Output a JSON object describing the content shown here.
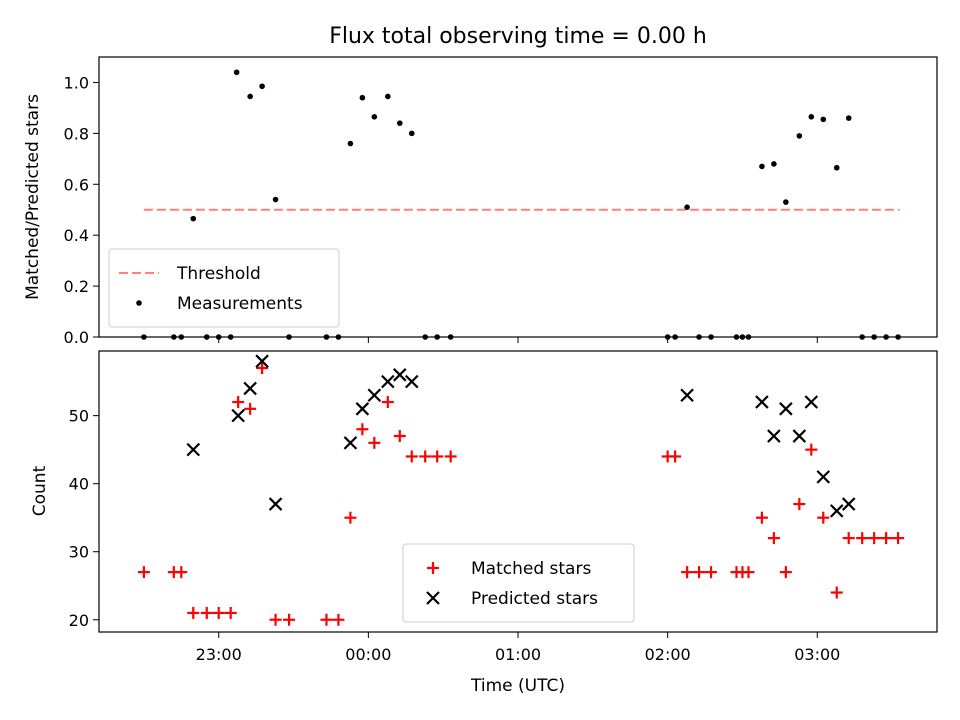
{
  "title": "Flux total observing time = 0.00 h",
  "chart_data": [
    {
      "type": "scatter",
      "ylabel": "Matched/Predicted stars",
      "xlabel": "",
      "ylim": [
        0,
        1.1
      ],
      "yticks": [
        "0.0",
        "0.2",
        "0.4",
        "0.6",
        "0.8",
        "1.0"
      ],
      "xticks_hours": [
        23,
        24,
        25,
        26,
        27
      ],
      "xlim_hours": [
        22.2,
        27.8
      ],
      "legend_position": "lower-left",
      "threshold": {
        "name": "Threshold",
        "value": 0.5,
        "x_range": [
          22.5,
          27.55
        ],
        "color": "#ff7f7f",
        "style": "dashed"
      },
      "series": [
        {
          "name": "Measurements",
          "marker": "dot",
          "color": "#000000",
          "x": [
            22.5,
            22.7,
            22.75,
            22.83,
            22.92,
            23.0,
            23.08,
            23.12,
            23.21,
            23.29,
            23.38,
            23.47,
            23.72,
            23.8,
            23.88,
            23.96,
            24.04,
            24.13,
            24.21,
            24.29,
            24.38,
            24.46,
            24.55,
            26.0,
            26.05,
            26.13,
            26.21,
            26.29,
            26.46,
            26.5,
            26.54,
            26.63,
            26.71,
            26.79,
            26.88,
            26.96,
            27.04,
            27.13,
            27.21,
            27.3,
            27.38,
            27.46,
            27.54
          ],
          "y": [
            0.0,
            0.0,
            0.0,
            0.465,
            0.0,
            0.0,
            0.0,
            1.04,
            0.945,
            0.985,
            0.54,
            0.0,
            0.0,
            0.0,
            0.76,
            0.94,
            0.865,
            0.945,
            0.84,
            0.8,
            0.0,
            0.0,
            0.0,
            0.0,
            0.0,
            0.51,
            0.0,
            0.0,
            0.0,
            0.0,
            0.0,
            0.67,
            0.68,
            0.53,
            0.79,
            0.865,
            0.855,
            0.665,
            0.86,
            0.0,
            0.0,
            0.0,
            0.0
          ]
        }
      ]
    },
    {
      "type": "scatter",
      "ylabel": "Count",
      "xlabel": "Time (UTC)",
      "ylim": [
        18.2,
        59.5
      ],
      "yticks": [
        "20",
        "30",
        "40",
        "50"
      ],
      "xtick_labels": [
        "23:00",
        "00:00",
        "01:00",
        "02:00",
        "03:00"
      ],
      "xticks_hours": [
        23,
        24,
        25,
        26,
        27
      ],
      "xlim_hours": [
        22.2,
        27.8
      ],
      "legend_position": "lower-center",
      "series": [
        {
          "name": "Matched stars",
          "marker": "plus",
          "color": "#ff0000",
          "x": [
            22.5,
            22.7,
            22.75,
            22.83,
            22.92,
            23.0,
            23.08,
            23.13,
            23.21,
            23.29,
            23.38,
            23.47,
            23.72,
            23.8,
            23.88,
            23.96,
            24.04,
            24.13,
            24.21,
            24.29,
            24.38,
            24.46,
            24.55,
            26.0,
            26.05,
            26.13,
            26.21,
            26.29,
            26.46,
            26.5,
            26.54,
            26.63,
            26.71,
            26.79,
            26.88,
            26.96,
            27.04,
            27.13,
            27.21,
            27.3,
            27.38,
            27.46,
            27.54
          ],
          "y": [
            27,
            27,
            27,
            21,
            21,
            21,
            21,
            52,
            51,
            57,
            20,
            20,
            20,
            20,
            35,
            48,
            46,
            52,
            47,
            44,
            44,
            44,
            44,
            44,
            44,
            27,
            27,
            27,
            27,
            27,
            27,
            35,
            32,
            27,
            37,
            45,
            35,
            24,
            32,
            32,
            32,
            32,
            32
          ]
        },
        {
          "name": "Predicted stars",
          "marker": "x",
          "color": "#000000",
          "x": [
            22.83,
            23.13,
            23.21,
            23.29,
            23.38,
            23.88,
            23.96,
            24.04,
            24.13,
            24.21,
            24.29,
            26.13,
            26.63,
            26.71,
            26.79,
            26.88,
            26.96,
            27.04,
            27.13,
            27.21
          ],
          "y": [
            45,
            50,
            54,
            58,
            37,
            46,
            51,
            53,
            55,
            56,
            55,
            53,
            52,
            47,
            51,
            47,
            52,
            41,
            36,
            37
          ]
        }
      ]
    }
  ]
}
